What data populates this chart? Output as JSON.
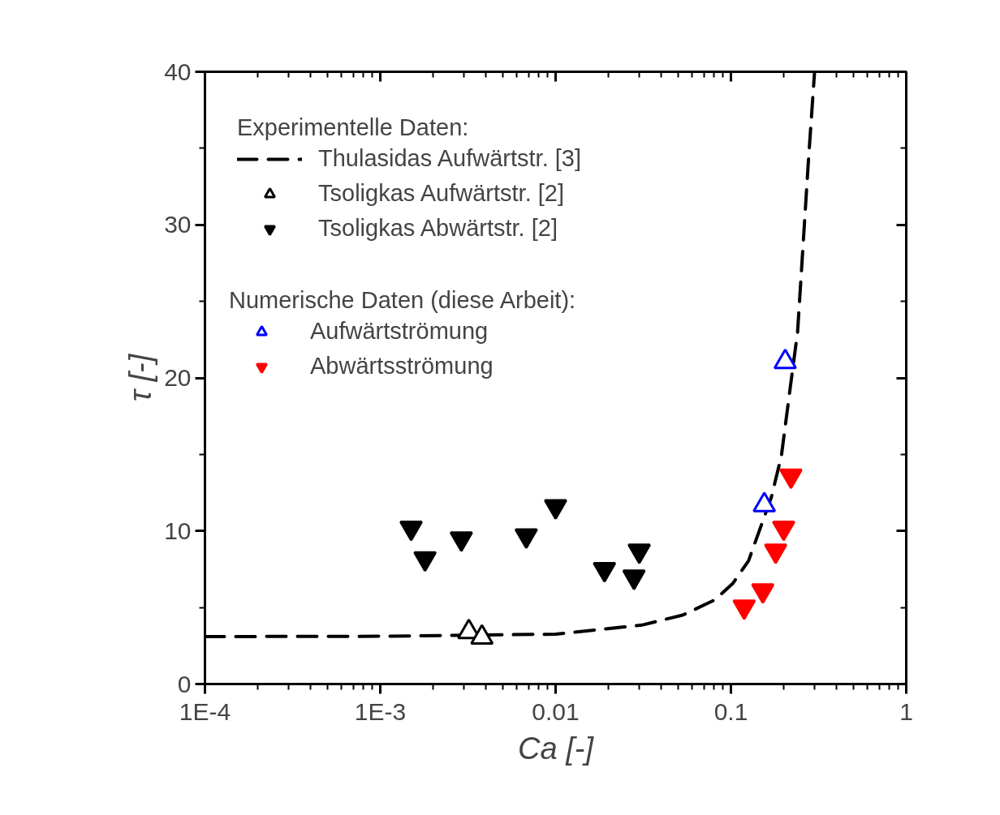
{
  "chart_data": {
    "type": "scatter",
    "xlabel": "Ca [-]",
    "ylabel": "τ [-]",
    "legend_title": "Experimentelle Daten:",
    "annotations": [
      "Numerische Daten (diese Arbeit):"
    ],
    "log": "x",
    "xlim": [
      0.0001,
      1
    ],
    "ylim": [
      0,
      40
    ],
    "xticks": [
      {
        "value": 0.0001,
        "label": "1E-4"
      },
      {
        "value": 0.001,
        "label": "1E-3"
      },
      0.01,
      0.1,
      1
    ],
    "yticks": [
      0,
      10,
      20,
      30,
      40
    ],
    "grid": false,
    "legend": "top left",
    "series": [
      {
        "name": "Thulasidas Aufwärtstr. [3]",
        "type": "line",
        "line_style": "dashed",
        "marker": "none",
        "color": "#000000",
        "x": [
          0.0001,
          0.001,
          0.01,
          0.031,
          0.053,
          0.081,
          0.103,
          0.126,
          0.17,
          0.194,
          0.217,
          0.24,
          0.276,
          0.3
        ],
        "values": [
          3.1,
          3.12,
          3.26,
          3.85,
          4.5,
          5.5,
          6.6,
          8.05,
          12.2,
          14.9,
          19.2,
          23,
          34,
          40
        ]
      },
      {
        "name": "Tsoligkas Aufwärtstr. [2]",
        "marker": "triangle",
        "color": "#000000",
        "x": [
          0.0032,
          0.0038
        ],
        "values": [
          3.4,
          3.05
        ]
      },
      {
        "name": "Tsoligkas Abwärtstr. [2]",
        "marker": "triangle_down",
        "color": "#000000",
        "x": [
          0.0015,
          0.0018,
          0.0029,
          0.0068,
          0.01,
          0.019,
          0.028,
          0.03
        ],
        "values": [
          10.2,
          8.2,
          9.5,
          9.7,
          11.6,
          7.5,
          7.0,
          8.7
        ]
      },
      {
        "name": "Aufwärtströmung",
        "marker": "triangle",
        "color": "#0000ff",
        "x": [
          0.155,
          0.204
        ],
        "values": [
          11.7,
          21.05
        ]
      },
      {
        "name": "Abwärtsströmung",
        "marker": "triangle_down",
        "color": "#ff0000",
        "x": [
          0.119,
          0.152,
          0.18,
          0.2,
          0.22
        ],
        "values": [
          5.05,
          6.1,
          8.7,
          10.2,
          13.6
        ]
      }
    ]
  }
}
